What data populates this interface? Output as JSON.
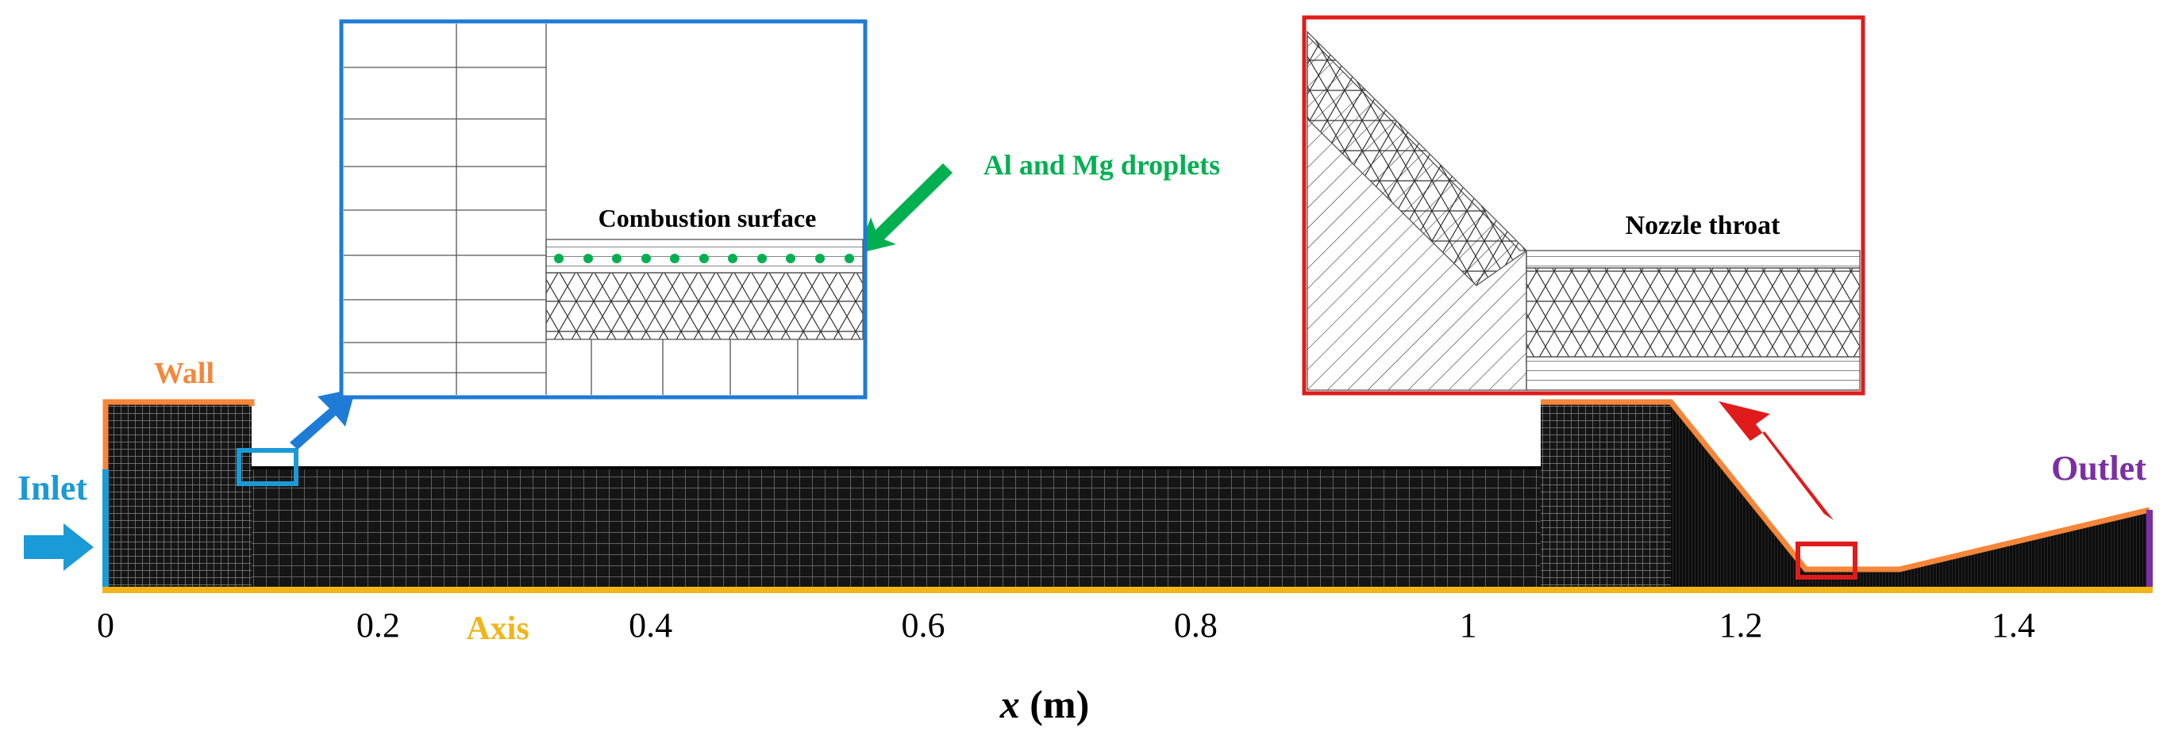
{
  "labels": {
    "inlet": "Inlet",
    "outlet": "Outlet",
    "wall": "Wall",
    "axis": "Axis",
    "droplets": "Al and Mg droplets",
    "combustion_surface": "Combustion surface",
    "nozzle_throat": "Nozzle throat"
  },
  "x_axis": {
    "title_var": "x",
    "title_unit": " (m)",
    "ticks": [
      "0",
      "0.2",
      "0.4",
      "0.6",
      "0.8",
      "1",
      "1.2",
      "1.4"
    ]
  },
  "colors": {
    "inlet": "#1a9ad6",
    "outlet": "#7b2fa3",
    "wall": "#f5863a",
    "axis": "#f2b418",
    "droplets": "#00b050",
    "zoom_left": "#1e7bd6",
    "zoom_right": "#e01b1b"
  }
}
